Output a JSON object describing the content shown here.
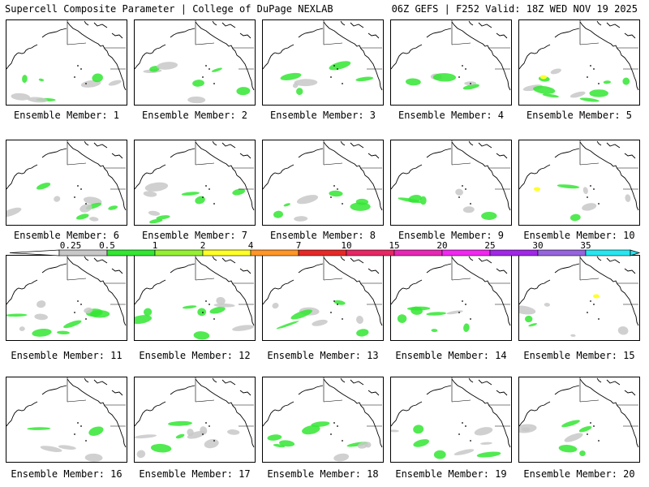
{
  "header": {
    "left": "Supercell Composite Parameter | College of DuPage NEXLAB",
    "right": "06Z GEFS | F252 Valid: 18Z WED NOV 19 2025"
  },
  "panels": [
    {
      "label": "Ensemble Member: 1"
    },
    {
      "label": "Ensemble Member: 2"
    },
    {
      "label": "Ensemble Member: 3"
    },
    {
      "label": "Ensemble Member: 4"
    },
    {
      "label": "Ensemble Member: 5"
    },
    {
      "label": "Ensemble Member: 6"
    },
    {
      "label": "Ensemble Member: 7"
    },
    {
      "label": "Ensemble Member: 8"
    },
    {
      "label": "Ensemble Member: 9"
    },
    {
      "label": "Ensemble Member: 10"
    },
    {
      "label": "Ensemble Member: 11"
    },
    {
      "label": "Ensemble Member: 12"
    },
    {
      "label": "Ensemble Member: 13"
    },
    {
      "label": "Ensemble Member: 14"
    },
    {
      "label": "Ensemble Member: 15"
    },
    {
      "label": "Ensemble Member: 16"
    },
    {
      "label": "Ensemble Member: 17"
    },
    {
      "label": "Ensemble Member: 18"
    },
    {
      "label": "Ensemble Member: 19"
    },
    {
      "label": "Ensemble Member: 20"
    }
  ],
  "legend": {
    "levels": [
      "0.25",
      "0.5",
      "1",
      "2",
      "4",
      "7",
      "10",
      "15",
      "20",
      "25",
      "30",
      "35"
    ],
    "colors": [
      "#c8c8c8",
      "#32e632",
      "#96f032",
      "#ffff28",
      "#ff9628",
      "#e62828",
      "#e62864",
      "#e628b4",
      "#f028f0",
      "#a028e6",
      "#9664dc",
      "#28e6f0"
    ]
  }
}
